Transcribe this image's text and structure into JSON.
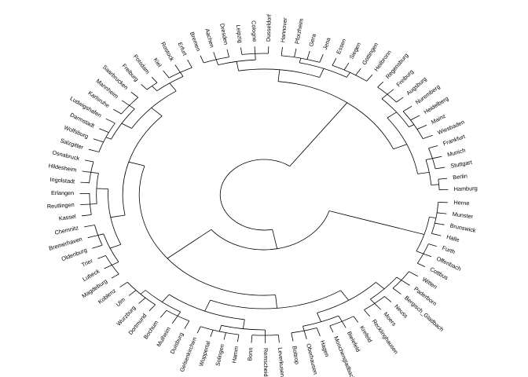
{
  "dendrogram": {
    "layout": "circular",
    "leaves": [
      "Hamburg",
      "Berlin",
      "Stuttgart",
      "Munich",
      "Frankfurt",
      "Wiesbaden",
      "Mainz",
      "Heidelberg",
      "Nuremberg",
      "Augsburg",
      "Freiburg",
      "Regensburg",
      "Heilbronn",
      "Gottingen",
      "Siegen",
      "Essen",
      "Jena",
      "Gera",
      "Pforzheim",
      "Hannover",
      "Dusseldorf",
      "Cologne",
      "Leipzig",
      "Dresden",
      "Aachen",
      "Bremen",
      "Erfurt",
      "Rostock",
      "Kiel",
      "Potsdam",
      "Freiburg",
      "Saarbrucken",
      "Mannheim",
      "Karlsruhe",
      "Ludwigshafen",
      "Darmstadt",
      "Wolfsburg",
      "Salzgitter",
      "Osnabruck",
      "Hildesheim",
      "Ingolstadt",
      "Erlangen",
      "Reutlingen",
      "Kassel",
      "Chemnitz",
      "Bremerhaven",
      "Oldenburg",
      "Trier",
      "Lubeck",
      "Magdeburg",
      "Koblenz",
      "Ulm",
      "Wurzburg",
      "Dortmund",
      "Bochum",
      "Mulheim",
      "Duisburg",
      "Gelsenkirchen",
      "Wuppertal",
      "Solingen",
      "Hamm",
      "Bonn",
      "Remscheid",
      "Leverkusen",
      "Bottrop",
      "Oberhausen",
      "Hagen",
      "Monchengladbach",
      "Bielefeld",
      "Krefeld",
      "Recklinghausen",
      "Moers",
      "Neuss",
      "Bergisch_Gladbach",
      "Paderborn",
      "Witten",
      "Cottbus",
      "Offenbach",
      "Furth",
      "Halle",
      "Brunswick",
      "Munster",
      "Herne"
    ]
  }
}
